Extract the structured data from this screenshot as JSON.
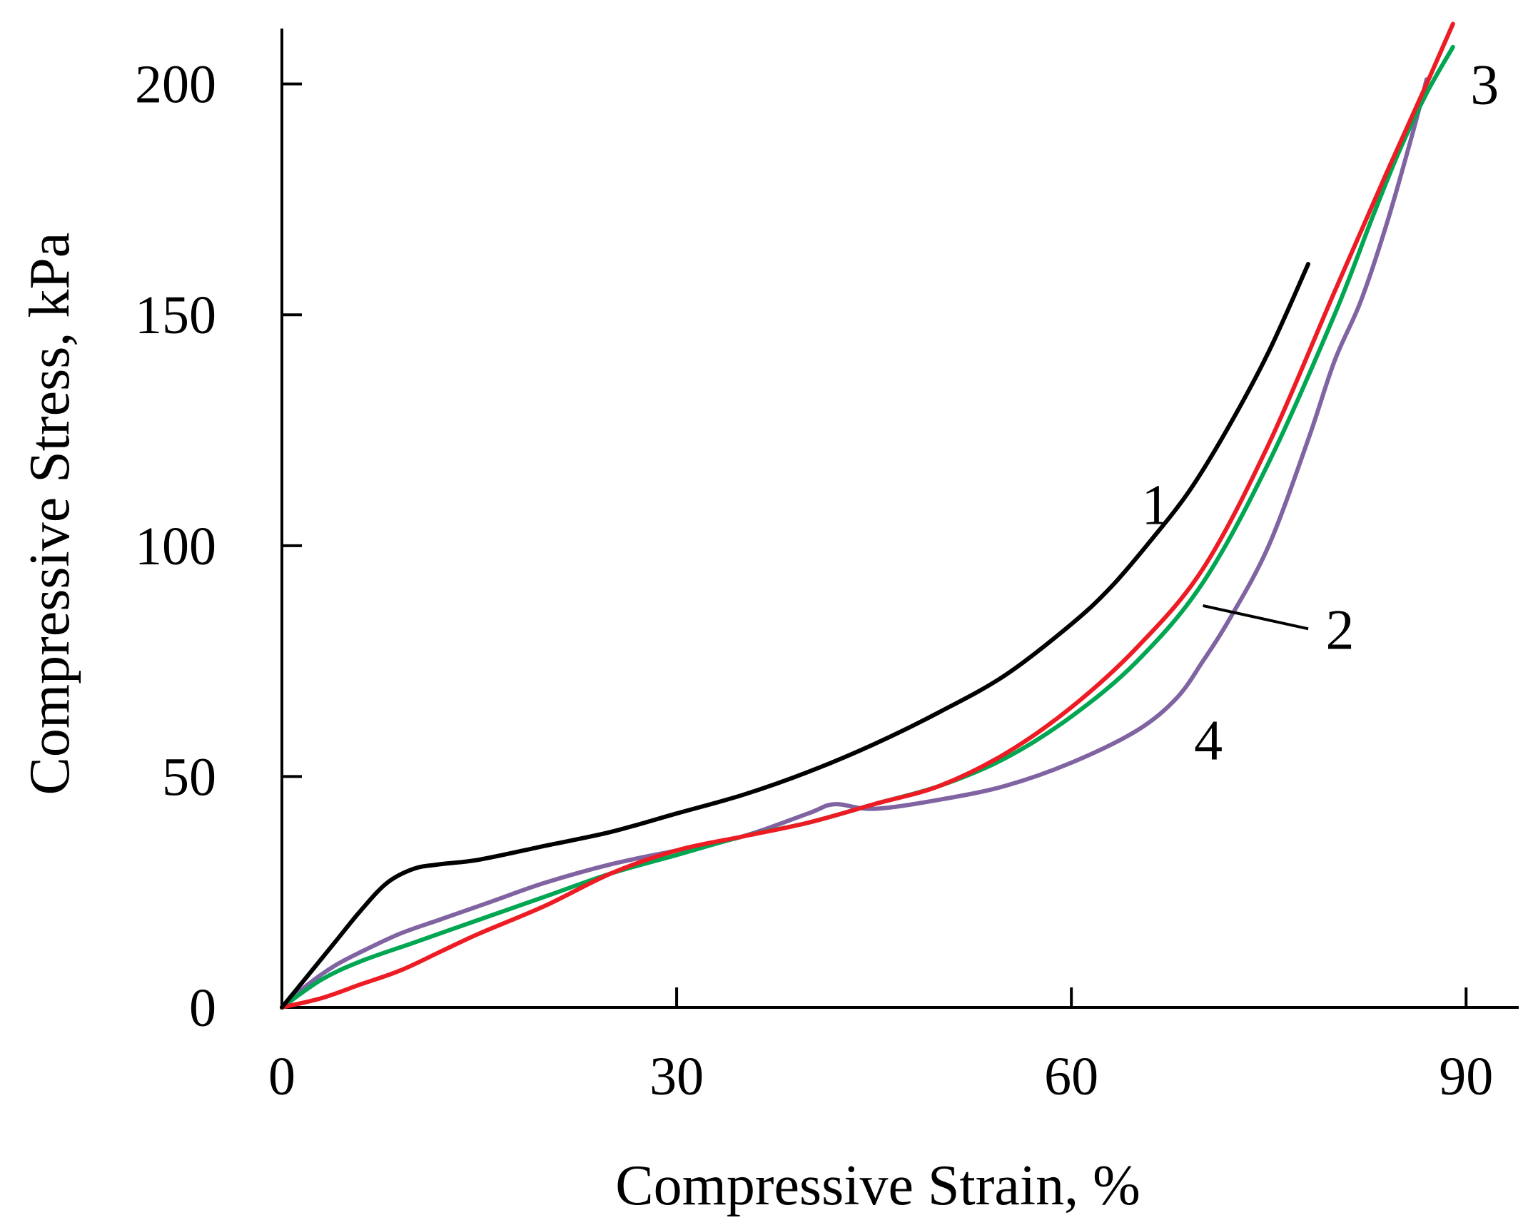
{
  "chart_data": {
    "type": "line",
    "title": "",
    "xlabel": "Compressive Strain, %",
    "ylabel": "Compressive Stress, kPa",
    "xlim": [
      0,
      94
    ],
    "ylim": [
      0,
      212
    ],
    "xticks": [
      0,
      30,
      60,
      90
    ],
    "xtick_labels": [
      "0",
      "30",
      "60",
      "90"
    ],
    "yticks": [
      0,
      50,
      100,
      150,
      200
    ],
    "ytick_labels": [
      "0",
      "50",
      "100",
      "150",
      "200"
    ],
    "grid": false,
    "legend": "none (curves labelled inline)",
    "series": [
      {
        "name": "1",
        "color": "#000000",
        "x": [
          0,
          2,
          4,
          6,
          8,
          10,
          12,
          15,
          20,
          25,
          30,
          35,
          40,
          45,
          50,
          55,
          60,
          63,
          66,
          69,
          72,
          75,
          78
        ],
        "y": [
          0,
          7,
          14,
          21,
          27,
          30,
          31,
          32,
          35,
          38,
          42,
          46,
          51,
          57,
          64,
          72,
          83,
          91,
          101,
          112,
          126,
          142,
          161
        ]
      },
      {
        "name": "2",
        "color": "#00a651",
        "x": [
          0,
          3,
          6,
          10,
          15,
          20,
          25,
          30,
          35,
          40,
          45,
          50,
          55,
          60,
          65,
          70,
          75,
          80,
          83,
          85,
          87,
          89
        ],
        "y": [
          0,
          6,
          10,
          14,
          19,
          24,
          29,
          33,
          37,
          40,
          44,
          48,
          54,
          63,
          75,
          92,
          118,
          150,
          172,
          186,
          198,
          208
        ]
      },
      {
        "name": "3",
        "color": "#ed1c24",
        "x": [
          0,
          3,
          6,
          9,
          12,
          15,
          20,
          25,
          30,
          35,
          40,
          45,
          50,
          55,
          60,
          65,
          70,
          75,
          80,
          84,
          87,
          89
        ],
        "y": [
          0,
          2,
          5,
          8,
          12,
          16,
          22,
          29,
          34,
          37,
          40,
          44,
          48,
          55,
          65,
          78,
          95,
          122,
          155,
          181,
          200,
          213
        ]
      },
      {
        "name": "4",
        "color": "#8064a2",
        "x": [
          0,
          2,
          4,
          6,
          9,
          12,
          16,
          20,
          25,
          30,
          35,
          40,
          42,
          45,
          50,
          55,
          60,
          65,
          68,
          70,
          72,
          75,
          78,
          80,
          82,
          84,
          86,
          87
        ],
        "y": [
          0,
          5,
          9,
          12,
          16,
          19,
          23,
          27,
          31,
          34,
          37,
          42,
          44,
          43,
          45,
          48,
          53,
          60,
          67,
          75,
          84,
          100,
          123,
          140,
          153,
          170,
          190,
          201
        ]
      }
    ],
    "annotations": [
      {
        "text": "1",
        "series": "1",
        "at_x": 65,
        "at_y": 109
      },
      {
        "text": "2",
        "series": "2",
        "at_x": 79,
        "at_y": 82,
        "leader_from": [
          70,
          87
        ],
        "leader_to": [
          78,
          82
        ]
      },
      {
        "text": "3",
        "series": "3",
        "at_x": 90,
        "at_y": 200
      },
      {
        "text": "4",
        "series": "4",
        "at_x": 69,
        "at_y": 58
      }
    ]
  }
}
